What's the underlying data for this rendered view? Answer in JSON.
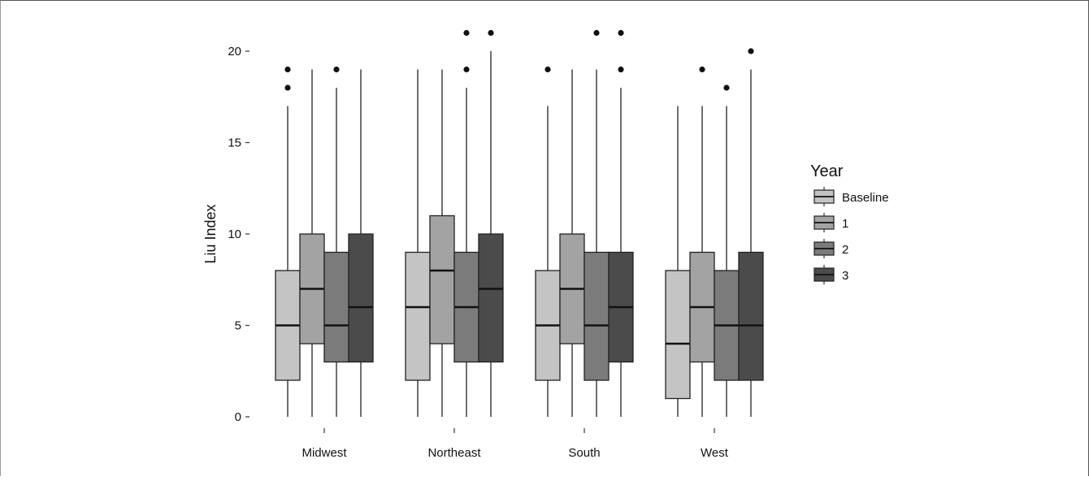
{
  "chart_data": {
    "type": "boxplot",
    "title": "",
    "xlabel": "",
    "ylabel": "Liu Index",
    "ylim": [
      0,
      20
    ],
    "yticks": [
      0,
      5,
      10,
      15,
      20
    ],
    "grid": false,
    "legend": {
      "title": "Year",
      "placement": "right"
    },
    "categories": [
      "Midwest",
      "Northeast",
      "South",
      "West"
    ],
    "series": [
      {
        "name": "Baseline",
        "color": "#c4c4c4",
        "boxes": [
          {
            "lower_whisker": 0,
            "q1": 2,
            "median": 5,
            "q3": 8,
            "upper_whisker": 17,
            "outliers": [
              18,
              19
            ]
          },
          {
            "lower_whisker": 0,
            "q1": 2,
            "median": 6,
            "q3": 9,
            "upper_whisker": 19,
            "outliers": []
          },
          {
            "lower_whisker": 0,
            "q1": 2,
            "median": 5,
            "q3": 8,
            "upper_whisker": 17,
            "outliers": [
              19
            ]
          },
          {
            "lower_whisker": 0,
            "q1": 1,
            "median": 4,
            "q3": 8,
            "upper_whisker": 17,
            "outliers": []
          }
        ]
      },
      {
        "name": "1",
        "color": "#a3a3a3",
        "boxes": [
          {
            "lower_whisker": 0,
            "q1": 4,
            "median": 7,
            "q3": 10,
            "upper_whisker": 19,
            "outliers": []
          },
          {
            "lower_whisker": 0,
            "q1": 4,
            "median": 8,
            "q3": 11,
            "upper_whisker": 19,
            "outliers": []
          },
          {
            "lower_whisker": 0,
            "q1": 4,
            "median": 7,
            "q3": 10,
            "upper_whisker": 19,
            "outliers": []
          },
          {
            "lower_whisker": 0,
            "q1": 3,
            "median": 6,
            "q3": 9,
            "upper_whisker": 17,
            "outliers": [
              19
            ]
          }
        ]
      },
      {
        "name": "2",
        "color": "#7b7b7b",
        "boxes": [
          {
            "lower_whisker": 0,
            "q1": 3,
            "median": 5,
            "q3": 9,
            "upper_whisker": 18,
            "outliers": [
              19
            ]
          },
          {
            "lower_whisker": 0,
            "q1": 3,
            "median": 6,
            "q3": 9,
            "upper_whisker": 18,
            "outliers": [
              19,
              21
            ]
          },
          {
            "lower_whisker": 0,
            "q1": 2,
            "median": 5,
            "q3": 9,
            "upper_whisker": 19,
            "outliers": [
              21
            ]
          },
          {
            "lower_whisker": 0,
            "q1": 2,
            "median": 5,
            "q3": 8,
            "upper_whisker": 17,
            "outliers": [
              18
            ]
          }
        ]
      },
      {
        "name": "3",
        "color": "#4b4b4b",
        "boxes": [
          {
            "lower_whisker": 0,
            "q1": 3,
            "median": 6,
            "q3": 10,
            "upper_whisker": 19,
            "outliers": []
          },
          {
            "lower_whisker": 0,
            "q1": 3,
            "median": 7,
            "q3": 10,
            "upper_whisker": 20,
            "outliers": [
              21
            ]
          },
          {
            "lower_whisker": 0,
            "q1": 3,
            "median": 6,
            "q3": 9,
            "upper_whisker": 18,
            "outliers": [
              19,
              21
            ]
          },
          {
            "lower_whisker": 0,
            "q1": 2,
            "median": 5,
            "q3": 9,
            "upper_whisker": 19,
            "outliers": [
              20
            ]
          }
        ]
      }
    ]
  }
}
